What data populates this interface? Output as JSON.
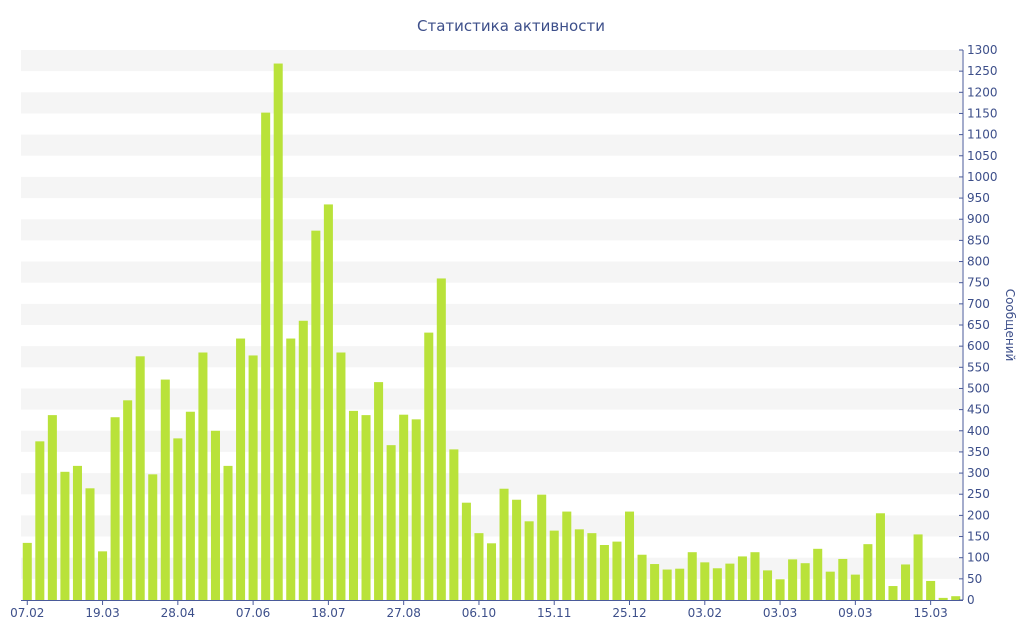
{
  "chart_data": {
    "type": "bar",
    "title": "Статистика активности",
    "xlabel": "",
    "ylabel": "Сообщений",
    "ylim": [
      0,
      1300
    ],
    "ytick_step": 50,
    "grid": "horizontal alternating bands",
    "y_axis_position": "right",
    "colors": {
      "bar": "#b9e23a",
      "text": "#3d4f8a",
      "axis": "#4a5a99",
      "band": "#f5f5f5"
    },
    "x_tick_labels": [
      {
        "index": 0,
        "label": "07.02"
      },
      {
        "index": 6,
        "label": "19.03"
      },
      {
        "index": 12,
        "label": "28.04"
      },
      {
        "index": 18,
        "label": "07.06"
      },
      {
        "index": 24,
        "label": "18.07"
      },
      {
        "index": 30,
        "label": "27.08"
      },
      {
        "index": 36,
        "label": "06.10"
      },
      {
        "index": 42,
        "label": "15.11"
      },
      {
        "index": 48,
        "label": "25.12"
      },
      {
        "index": 54,
        "label": "03.02"
      },
      {
        "index": 60,
        "label": "03.03"
      },
      {
        "index": 66,
        "label": "09.03"
      },
      {
        "index": 72,
        "label": "15.03"
      }
    ],
    "values": [
      135,
      375,
      437,
      303,
      317,
      264,
      115,
      432,
      472,
      576,
      297,
      521,
      382,
      445,
      585,
      400,
      317,
      618,
      578,
      1152,
      1268,
      618,
      660,
      873,
      935,
      585,
      447,
      437,
      515,
      366,
      438,
      427,
      632,
      760,
      356,
      230,
      158,
      134,
      263,
      237,
      186,
      249,
      164,
      209,
      167,
      158,
      130,
      138,
      209,
      107,
      85,
      72,
      74,
      113,
      89,
      75,
      86,
      103,
      113,
      70,
      49,
      96,
      87,
      121,
      67,
      97,
      60,
      132,
      205,
      33,
      84,
      155,
      45,
      5,
      9
    ]
  }
}
